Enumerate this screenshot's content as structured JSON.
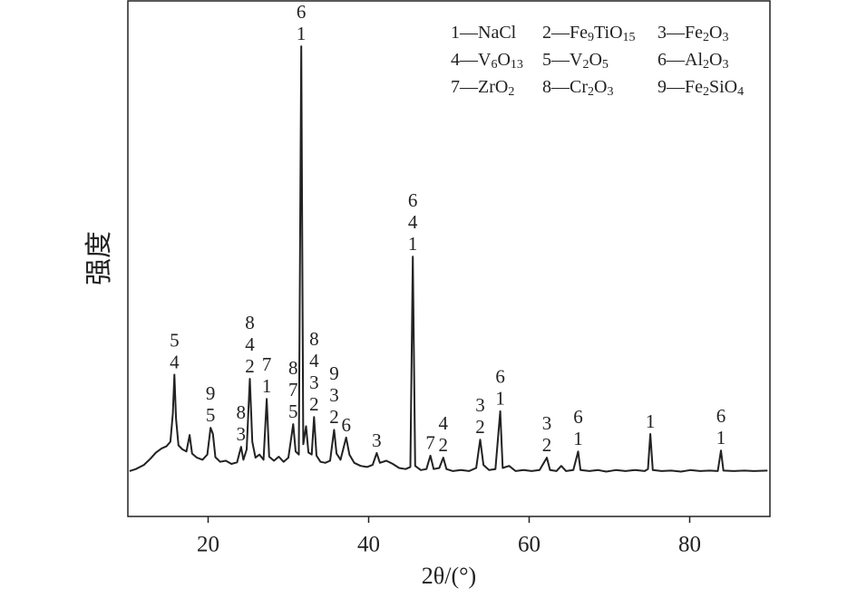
{
  "chart_data": {
    "type": "line",
    "x_label": "2θ/(°)",
    "y_label": "强度",
    "color": "#222222",
    "xlim": [
      10,
      90
    ],
    "xticks": [
      20,
      40,
      60,
      80
    ],
    "ylim": [
      0,
      100
    ],
    "x": [
      10.2,
      11,
      12,
      12.8,
      13.5,
      14.2,
      14.8,
      15.3,
      15.6,
      15.8,
      16.0,
      16.3,
      16.8,
      17.3,
      17.7,
      18.0,
      18.6,
      19.3,
      19.9,
      20.3,
      20.6,
      20.9,
      21.5,
      22.2,
      22.9,
      23.6,
      24.1,
      24.4,
      24.8,
      25.2,
      25.5,
      25.9,
      26.4,
      26.9,
      27.3,
      27.6,
      28.2,
      28.8,
      29.4,
      30.0,
      30.6,
      30.9,
      31.3,
      31.6,
      31.85,
      32.2,
      32.5,
      32.9,
      33.2,
      33.5,
      34.0,
      34.6,
      35.2,
      35.7,
      36.0,
      36.5,
      37.2,
      37.6,
      38.2,
      39.0,
      39.8,
      40.5,
      41.0,
      41.4,
      42.2,
      43.0,
      43.8,
      44.6,
      45.2,
      45.5,
      45.8,
      46.5,
      47.2,
      47.7,
      48.1,
      48.8,
      49.3,
      49.7,
      50.5,
      51.5,
      52.5,
      53.4,
      53.9,
      54.3,
      55.0,
      55.8,
      56.4,
      56.7,
      57.5,
      58.3,
      59.3,
      60.3,
      61.3,
      62.2,
      62.6,
      63.4,
      64.0,
      64.6,
      65.5,
      66.1,
      66.4,
      67.5,
      68.6,
      69.6,
      70.8,
      72.0,
      73.2,
      74.4,
      74.8,
      75.1,
      75.4,
      76.5,
      77.7,
      78.9,
      80.1,
      81.3,
      82.5,
      83.5,
      83.9,
      84.2,
      85.5,
      86.8,
      88.0,
      89.7
    ],
    "values": [
      8.8,
      9.2,
      10.0,
      11.2,
      12.4,
      13.2,
      13.6,
      14.5,
      20,
      27.5,
      19,
      13.8,
      13.0,
      12.6,
      15.8,
      12.2,
      11.4,
      11.0,
      12.0,
      17.2,
      16.0,
      11.5,
      10.6,
      10.8,
      10.2,
      10.5,
      13.5,
      11.0,
      13.0,
      26.7,
      14.5,
      11.4,
      12.0,
      11.0,
      22.8,
      11.6,
      10.8,
      11.6,
      10.6,
      11.4,
      17.9,
      12.6,
      12.0,
      91.2,
      14.0,
      17.5,
      12.4,
      12.0,
      19.3,
      11.8,
      10.6,
      10.4,
      10.8,
      16.8,
      12.2,
      11.0,
      15.3,
      12.0,
      10.4,
      9.8,
      9.6,
      10.0,
      12.3,
      10.4,
      10.8,
      10.2,
      9.4,
      9.2,
      9.6,
      50.4,
      9.8,
      9.0,
      9.2,
      11.8,
      9.2,
      9.4,
      11.4,
      9.2,
      8.8,
      9.0,
      8.8,
      9.4,
      14.9,
      10.0,
      9.0,
      9.2,
      20.4,
      9.4,
      9.8,
      8.8,
      9.0,
      8.8,
      9.0,
      11.4,
      9.0,
      8.8,
      9.8,
      8.8,
      9.0,
      12.6,
      9.0,
      8.8,
      9.0,
      8.7,
      9.0,
      8.8,
      9.0,
      8.8,
      9.2,
      16.0,
      9.0,
      8.8,
      8.9,
      8.7,
      9.0,
      8.8,
      8.9,
      8.8,
      12.8,
      8.9,
      8.8,
      8.9,
      8.8,
      8.9
    ],
    "annotations": [
      {
        "x": 15.8,
        "text": [
          "5",
          "4"
        ]
      },
      {
        "x": 20.3,
        "text": [
          "9",
          "5"
        ]
      },
      {
        "x": 24.1,
        "text": [
          "8",
          "3"
        ]
      },
      {
        "x": 25.2,
        "text": [
          "8",
          "4",
          "2"
        ]
      },
      {
        "x": 27.3,
        "text": [
          "7",
          "1"
        ]
      },
      {
        "x": 30.6,
        "text": [
          "8",
          "7",
          "5"
        ]
      },
      {
        "x": 31.6,
        "text": [
          "6",
          "1"
        ]
      },
      {
        "x": 33.2,
        "text": [
          "8",
          "4",
          "3",
          "2"
        ]
      },
      {
        "x": 35.7,
        "text": [
          "9",
          "3",
          "2"
        ]
      },
      {
        "x": 37.2,
        "text": [
          "6"
        ]
      },
      {
        "x": 41.0,
        "text": [
          "3"
        ]
      },
      {
        "x": 45.5,
        "text": [
          "6",
          "4",
          "1"
        ]
      },
      {
        "x": 47.7,
        "text": [
          "7"
        ]
      },
      {
        "x": 49.3,
        "text": [
          "4",
          "2"
        ]
      },
      {
        "x": 53.9,
        "text": [
          "3",
          "2"
        ]
      },
      {
        "x": 56.4,
        "text": [
          "6",
          "1"
        ]
      },
      {
        "x": 62.2,
        "text": [
          "3",
          "2"
        ]
      },
      {
        "x": 66.1,
        "text": [
          "6",
          "1"
        ]
      },
      {
        "x": 75.1,
        "text": [
          "1"
        ]
      },
      {
        "x": 83.9,
        "text": [
          "6",
          "1"
        ]
      }
    ],
    "legend": [
      "1—NaCl",
      "2—Fe9TiO15",
      "3—Fe2O3",
      "4—V6O13",
      "5—V2O5",
      "6—Al2O3",
      "7—ZrO2",
      "8—Cr2O3",
      "9—Fe2SiO4"
    ]
  }
}
